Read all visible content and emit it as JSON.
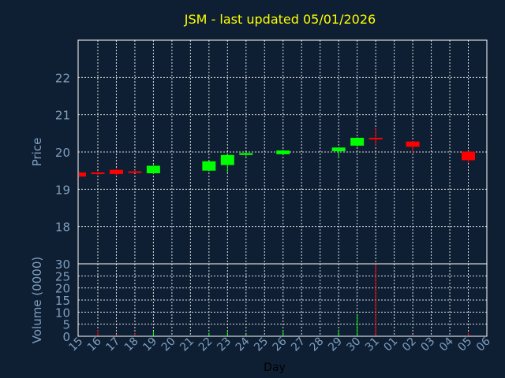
{
  "chart_data": {
    "type": "candlestick",
    "title": "JSM - last updated 05/01/2026",
    "xlabel": "Day",
    "ylabel_price": "Price",
    "ylabel_volume": "Volume (0000)",
    "x_ticks": [
      "15",
      "16",
      "17",
      "18",
      "19",
      "20",
      "21",
      "22",
      "23",
      "24",
      "25",
      "26",
      "27",
      "28",
      "29",
      "30",
      "31",
      "01",
      "02",
      "03",
      "04",
      "05",
      "06"
    ],
    "price_ylim": [
      17.0,
      23.0
    ],
    "price_yticks": [
      18,
      19,
      20,
      21,
      22
    ],
    "volume_ylim": [
      0,
      30
    ],
    "volume_yticks": [
      0,
      5,
      10,
      15,
      20,
      25,
      30
    ],
    "grid": true,
    "colors": {
      "background": "#0f1f33",
      "up": "#00ff00",
      "down": "#ff0000",
      "title": "#ffff00",
      "axis_text": "#7f9fbf",
      "frame": "#ffffff"
    },
    "candles": [
      {
        "day": "15",
        "open": 19.45,
        "high": 19.46,
        "low": 19.33,
        "close": 19.34,
        "volume": 0.3
      },
      {
        "day": "16",
        "open": 19.45,
        "high": 19.48,
        "low": 19.38,
        "close": 19.41,
        "volume": 2.5
      },
      {
        "day": "17",
        "open": 19.52,
        "high": 19.55,
        "low": 19.35,
        "close": 19.41,
        "volume": 0.8
      },
      {
        "day": "18",
        "open": 19.48,
        "high": 19.51,
        "low": 19.44,
        "close": 19.46,
        "volume": 1.2
      },
      {
        "day": "19",
        "open": 19.43,
        "high": 19.65,
        "low": 19.41,
        "close": 19.63,
        "volume": 2.0
      },
      {
        "day": "22",
        "open": 19.5,
        "high": 19.76,
        "low": 19.48,
        "close": 19.75,
        "volume": 1.5
      },
      {
        "day": "23",
        "open": 19.65,
        "high": 19.93,
        "low": 19.45,
        "close": 19.92,
        "volume": 2.2
      },
      {
        "day": "24",
        "open": 19.92,
        "high": 20.0,
        "low": 19.88,
        "close": 19.97,
        "volume": 0.8
      },
      {
        "day": "26",
        "open": 19.94,
        "high": 20.06,
        "low": 19.92,
        "close": 20.04,
        "volume": 2.5
      },
      {
        "day": "29",
        "open": 20.02,
        "high": 20.12,
        "low": 19.83,
        "close": 20.12,
        "volume": 2.8
      },
      {
        "day": "30",
        "open": 20.17,
        "high": 20.4,
        "low": 20.14,
        "close": 20.38,
        "volume": 9.0
      },
      {
        "day": "31",
        "open": 20.38,
        "high": 20.65,
        "low": 20.17,
        "close": 20.35,
        "volume": 30.0
      },
      {
        "day": "02",
        "open": 20.28,
        "high": 20.29,
        "low": 19.97,
        "close": 20.14,
        "volume": 0.5
      },
      {
        "day": "05",
        "open": 20.01,
        "high": 20.02,
        "low": 19.7,
        "close": 19.78,
        "volume": 1.6
      }
    ]
  }
}
